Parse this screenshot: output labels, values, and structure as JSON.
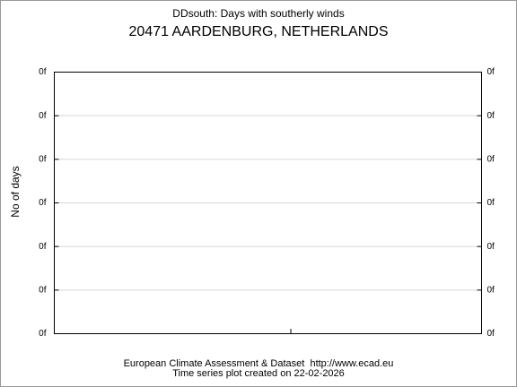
{
  "title": "DDsouth: Days with southerly winds",
  "subtitle": "20471 AARDENBURG, NETHERLANDS",
  "y_axis": {
    "label": "No of days",
    "tick_labels": [
      "0f",
      "0f",
      "0f",
      "0f",
      "0f",
      "0f",
      "0f"
    ]
  },
  "footer": {
    "line1": "European Climate Assessment & Dataset  http://www.ecad.eu",
    "line2": "Time series plot created on 22-02-2026"
  }
}
